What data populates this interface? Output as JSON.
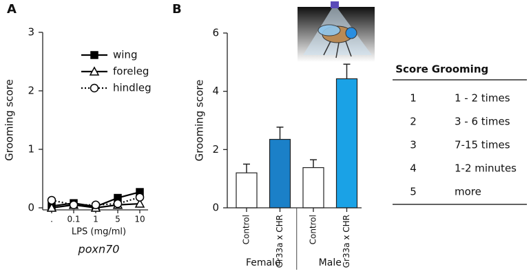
{
  "chart_data": [
    {
      "type": "line",
      "panel": "A",
      "ylabel": "Grooming score",
      "xlabel": "LPS (mg/ml)",
      "subtitle": "poxn70",
      "categories": [
        ".",
        "0.1",
        "1",
        "5",
        "10"
      ],
      "ylim": [
        0,
        3
      ],
      "yticks": [
        0,
        1,
        2,
        3
      ],
      "legend": "upper right",
      "series": [
        {
          "name": "wing",
          "color": "#000000",
          "marker": "square",
          "marker_fill": "#000000",
          "linestyle": "solid",
          "values": [
            0.03,
            0.08,
            0.02,
            0.17,
            0.27
          ]
        },
        {
          "name": "foreleg",
          "color": "#000000",
          "marker": "triangle",
          "marker_fill": "#ffffff",
          "linestyle": "solid",
          "values": [
            0.0,
            0.05,
            0.0,
            0.05,
            0.07
          ]
        },
        {
          "name": "hindleg",
          "color": "#000000",
          "marker": "circle",
          "marker_fill": "#ffffff",
          "linestyle": "dotted",
          "values": [
            0.13,
            0.05,
            0.05,
            0.07,
            0.18
          ]
        }
      ]
    },
    {
      "type": "bar",
      "panel": "B",
      "ylabel": "Grooming score",
      "categories": [
        "Control",
        "Gr33a x CHR",
        "Control",
        "Gr33a x CHR"
      ],
      "groups": [
        "Female",
        "Male"
      ],
      "values": [
        1.2,
        2.35,
        1.38,
        4.43
      ],
      "errors": [
        0.3,
        0.42,
        0.27,
        0.5
      ],
      "colors": [
        "#ffffff",
        "#1b80c8",
        "#ffffff",
        "#1aa2e6"
      ],
      "ylim": [
        0,
        6
      ],
      "yticks": [
        0,
        2,
        4,
        6
      ]
    }
  ],
  "table": {
    "header": [
      "Score",
      "Grooming"
    ],
    "rows": [
      [
        "1",
        "1 - 2 times"
      ],
      [
        "2",
        "3 - 6 times"
      ],
      [
        "3",
        "7-15 times"
      ],
      [
        "4",
        "1-2 minutes"
      ],
      [
        "5",
        "more"
      ]
    ]
  }
}
